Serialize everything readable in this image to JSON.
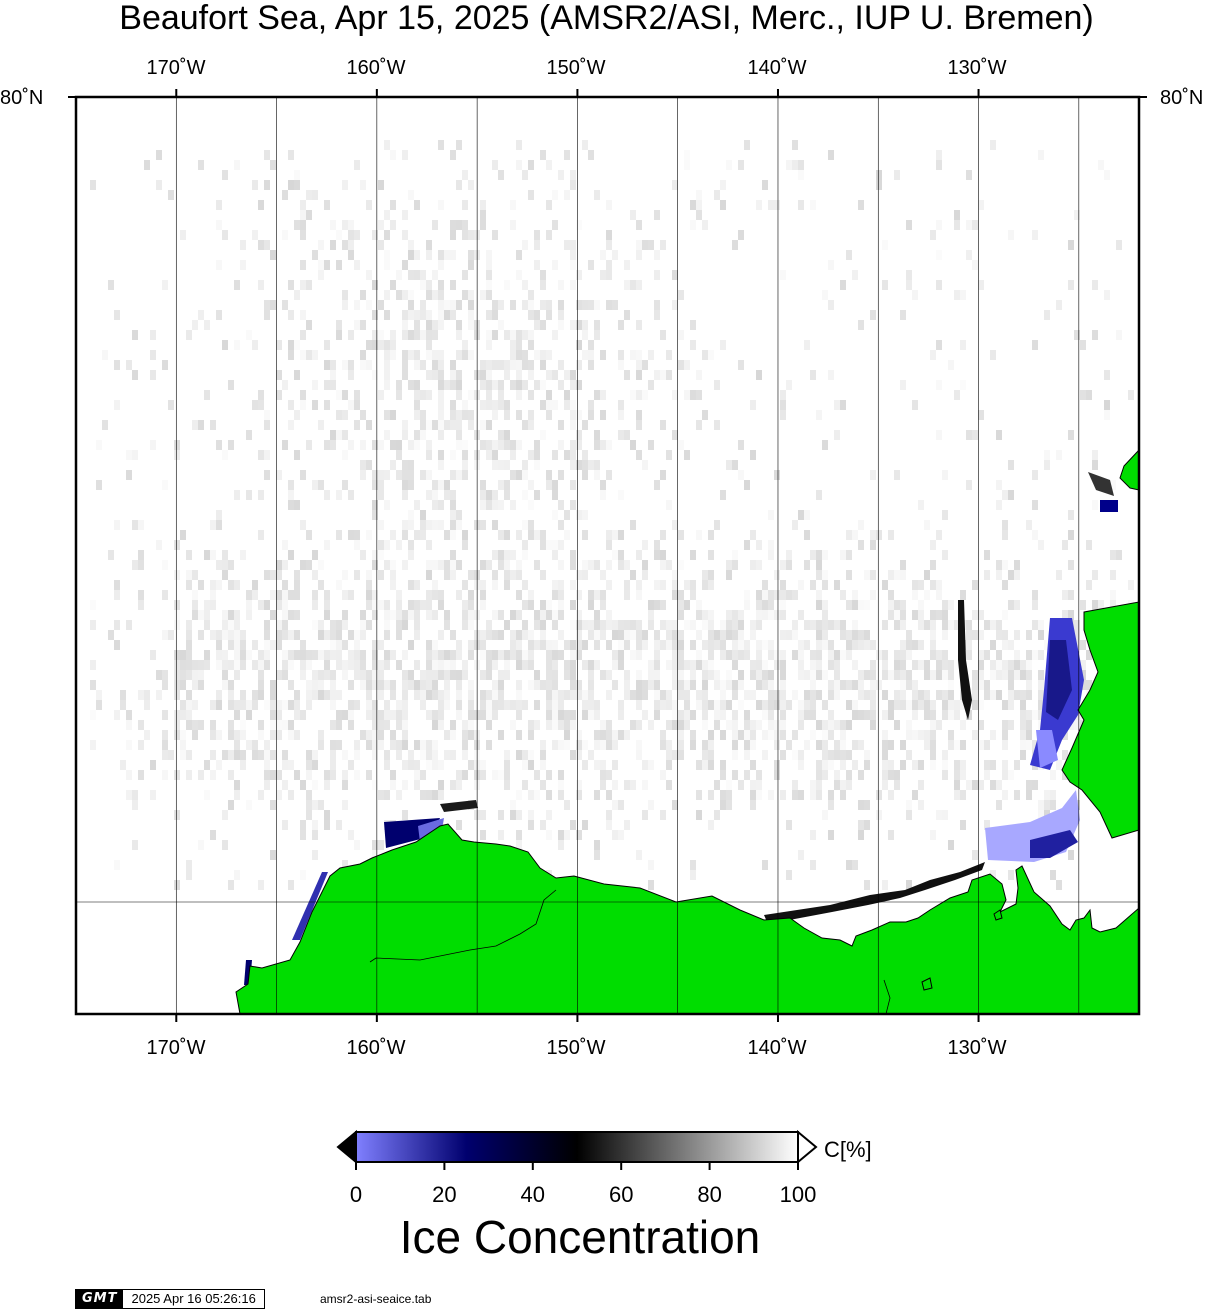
{
  "title": "Beaufort Sea, Apr 15, 2025 (AMSR2/ASI, Merc., IUP U. Bremen)",
  "map": {
    "projection": "Mercator",
    "lon_range": [
      -175,
      -122
    ],
    "top_latitude_label": "80°N",
    "meridian_labels": [
      "170˚W",
      "160˚W",
      "150˚W",
      "140˚W",
      "130˚W"
    ],
    "latitude_labels": [
      "80˚N",
      "80˚N"
    ],
    "colors": {
      "ocean": "#ffffff",
      "land": "#00dd00",
      "coastline": "#000000",
      "gridline": "#000000"
    }
  },
  "colorbar": {
    "label": "C[%]",
    "ticks": [
      "0",
      "20",
      "40",
      "60",
      "80",
      "100"
    ],
    "range": [
      0,
      100
    ],
    "colors": [
      "#8080ff",
      "#00006e",
      "#000000",
      "#808080",
      "#ffffff"
    ]
  },
  "caption": "Ice Concentration",
  "footer": {
    "logo": "GMT",
    "timestamp": "2025 Apr 16 05:26:16",
    "source": "amsr2-asi-seaice.tab"
  }
}
